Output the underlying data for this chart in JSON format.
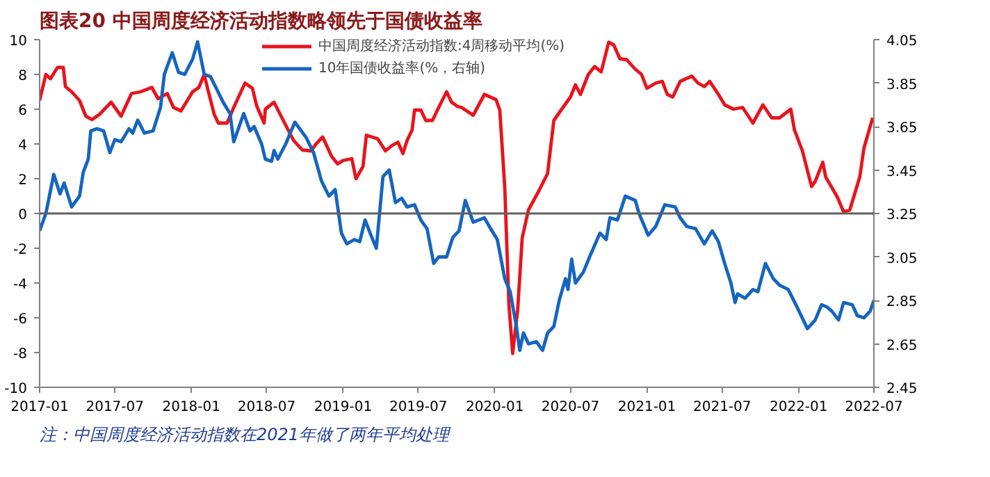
{
  "chart_data": {
    "type": "line",
    "title": "图表20 中国周度经济活动指数略领先于国债收益率",
    "annotations": [
      "注：中国周度经济活动指数在2021年做了两年平均处理"
    ],
    "xlim": [
      "2017-01-01",
      "2022-07-01"
    ],
    "xticks": [
      "2017-01",
      "2017-07",
      "2018-01",
      "2018-07",
      "2019-01",
      "2019-07",
      "2020-01",
      "2020-07",
      "2021-01",
      "2021-07",
      "2022-01",
      "2022-07"
    ],
    "ylim": [
      -10,
      10
    ],
    "yticks": [
      -10,
      -8,
      -6,
      -4,
      -2,
      0,
      2,
      4,
      6,
      8,
      10
    ],
    "y2lim": [
      2.45,
      4.05
    ],
    "y2ticks": [
      2.45,
      2.65,
      2.85,
      3.05,
      3.25,
      3.45,
      3.65,
      3.85,
      4.05
    ],
    "ref_lines": [
      {
        "axis": "y",
        "value": 0,
        "color": "#606060"
      }
    ],
    "legend": "top",
    "grid": false,
    "series": [
      {
        "name": "中国周度经济活动指数:4周移动平均(%)",
        "color": "#e8141c",
        "x": [
          "2017-01-01",
          "2017-01-16",
          "2017-01-27",
          "2017-02-13",
          "2017-02-27",
          "2017-03-04",
          "2017-03-19",
          "2017-04-07",
          "2017-04-22",
          "2017-05-07",
          "2017-05-25",
          "2017-06-22",
          "2017-07-16",
          "2017-08-10",
          "2017-09-01",
          "2017-09-28",
          "2017-10-13",
          "2017-11-04",
          "2017-11-19",
          "2017-12-07",
          "2018-01-04",
          "2018-01-19",
          "2018-02-01",
          "2018-02-10",
          "2018-02-25",
          "2018-03-07",
          "2018-03-28",
          "2018-04-13",
          "2018-05-10",
          "2018-05-28",
          "2018-06-07",
          "2018-06-25",
          "2018-06-28",
          "2018-07-19",
          "2018-08-07",
          "2018-09-04",
          "2018-09-25",
          "2018-10-16",
          "2018-10-28",
          "2018-11-13",
          "2018-12-04",
          "2018-12-19",
          "2019-01-01",
          "2019-01-22",
          "2019-02-01",
          "2019-02-18",
          "2019-02-26",
          "2019-03-25",
          "2019-04-13",
          "2019-04-28",
          "2019-05-13",
          "2019-05-25",
          "2019-06-04",
          "2019-06-16",
          "2019-06-22",
          "2019-07-07",
          "2019-07-19",
          "2019-08-04",
          "2019-08-19",
          "2019-09-07",
          "2019-09-19",
          "2019-10-04",
          "2019-10-13",
          "2019-11-10",
          "2019-12-07",
          "2020-01-04",
          "2020-01-13",
          "2020-01-25",
          "2020-02-04",
          "2020-02-13",
          "2020-02-25",
          "2020-03-07",
          "2020-03-22",
          "2020-04-16",
          "2020-05-07",
          "2020-05-22",
          "2020-06-13",
          "2020-07-01",
          "2020-07-13",
          "2020-07-25",
          "2020-08-13",
          "2020-08-28",
          "2020-09-13",
          "2020-10-01",
          "2020-10-13",
          "2020-10-28",
          "2020-11-13",
          "2020-12-04",
          "2020-12-19",
          "2021-01-01",
          "2021-01-22",
          "2021-02-07",
          "2021-02-19",
          "2021-03-04",
          "2021-03-22",
          "2021-04-19",
          "2021-05-04",
          "2021-05-19",
          "2021-06-01",
          "2021-06-22",
          "2021-07-07",
          "2021-07-28",
          "2021-08-19",
          "2021-09-13",
          "2021-10-07",
          "2021-10-28",
          "2021-11-16",
          "2021-12-13",
          "2021-12-22",
          "2022-01-10",
          "2022-02-01",
          "2022-02-10",
          "2022-02-28",
          "2022-03-07",
          "2022-04-04",
          "2022-04-19",
          "2022-05-04",
          "2022-05-28",
          "2022-06-07",
          "2022-06-28"
        ],
        "values": [
          6.5,
          8.0,
          7.75,
          8.4,
          8.4,
          7.3,
          7.0,
          6.5,
          5.6,
          5.4,
          5.7,
          6.4,
          5.6,
          6.9,
          7.0,
          7.25,
          6.6,
          6.9,
          6.1,
          5.9,
          7.0,
          7.25,
          8.0,
          7.1,
          5.7,
          5.2,
          5.2,
          6.1,
          7.5,
          7.2,
          6.2,
          5.2,
          6.0,
          6.4,
          5.5,
          4.2,
          3.65,
          3.6,
          4.0,
          4.4,
          3.3,
          2.85,
          3.05,
          3.15,
          2.0,
          2.7,
          4.5,
          4.3,
          3.6,
          3.9,
          4.1,
          3.45,
          4.2,
          4.8,
          5.95,
          5.95,
          5.35,
          5.35,
          6.1,
          7.0,
          6.4,
          6.15,
          6.1,
          5.65,
          6.85,
          6.55,
          5.95,
          1.5,
          -5.25,
          -8.05,
          -5.55,
          -1.4,
          0.2,
          1.3,
          2.3,
          5.35,
          6.1,
          6.7,
          7.4,
          6.85,
          8.0,
          8.45,
          8.15,
          9.85,
          9.7,
          8.9,
          8.85,
          8.3,
          8.0,
          7.2,
          7.5,
          7.6,
          6.85,
          6.7,
          7.6,
          7.9,
          7.5,
          7.3,
          7.6,
          6.85,
          6.25,
          6.0,
          6.1,
          5.2,
          6.25,
          5.5,
          5.5,
          6.0,
          4.8,
          3.6,
          1.55,
          1.85,
          2.95,
          2.1,
          0.95,
          0.1,
          0.2,
          2.1,
          3.75,
          5.5
        ]
      },
      {
        "name": "10年国债收益率(%，右轴)",
        "color": "#1565c0",
        "axis": "y2",
        "x": [
          "2017-01-01",
          "2017-01-16",
          "2017-02-04",
          "2017-02-19",
          "2017-03-01",
          "2017-03-19",
          "2017-04-07",
          "2017-04-16",
          "2017-04-28",
          "2017-05-04",
          "2017-05-19",
          "2017-06-04",
          "2017-06-19",
          "2017-07-01",
          "2017-07-16",
          "2017-08-04",
          "2017-08-13",
          "2017-08-25",
          "2017-09-10",
          "2017-10-01",
          "2017-10-19",
          "2017-10-28",
          "2017-11-16",
          "2017-12-01",
          "2017-12-16",
          "2018-01-04",
          "2018-01-16",
          "2018-02-01",
          "2018-02-16",
          "2018-03-01",
          "2018-03-19",
          "2018-04-04",
          "2018-04-13",
          "2018-05-07",
          "2018-05-22",
          "2018-06-01",
          "2018-06-19",
          "2018-06-28",
          "2018-07-13",
          "2018-07-19",
          "2018-07-28",
          "2018-08-16",
          "2018-09-07",
          "2018-10-04",
          "2018-10-22",
          "2018-11-10",
          "2018-11-28",
          "2018-12-13",
          "2018-12-28",
          "2019-01-10",
          "2019-01-28",
          "2019-02-10",
          "2019-02-23",
          "2019-03-07",
          "2019-03-22",
          "2019-04-07",
          "2019-04-22",
          "2019-05-07",
          "2019-05-22",
          "2019-06-04",
          "2019-06-22",
          "2019-07-07",
          "2019-07-22",
          "2019-08-07",
          "2019-08-19",
          "2019-09-07",
          "2019-09-22",
          "2019-10-07",
          "2019-10-22",
          "2019-11-10",
          "2019-12-07",
          "2019-12-22",
          "2020-01-07",
          "2020-01-25",
          "2020-02-07",
          "2020-02-22",
          "2020-03-01",
          "2020-03-10",
          "2020-03-22",
          "2020-04-10",
          "2020-04-25",
          "2020-05-07",
          "2020-05-22",
          "2020-06-04",
          "2020-06-19",
          "2020-06-25",
          "2020-07-04",
          "2020-07-13",
          "2020-08-01",
          "2020-08-16",
          "2020-09-10",
          "2020-09-25",
          "2020-10-04",
          "2020-10-22",
          "2020-11-10",
          "2020-12-04",
          "2020-12-13",
          "2021-01-04",
          "2021-01-22",
          "2021-02-13",
          "2021-03-10",
          "2021-03-22",
          "2021-04-07",
          "2021-04-28",
          "2021-05-19",
          "2021-06-07",
          "2021-06-22",
          "2021-07-07",
          "2021-07-22",
          "2021-08-01",
          "2021-08-07",
          "2021-08-25",
          "2021-09-13",
          "2021-09-25",
          "2021-10-13",
          "2021-11-01",
          "2021-11-16",
          "2021-12-07",
          "2021-12-28",
          "2022-01-22",
          "2022-02-10",
          "2022-02-25",
          "2022-03-10",
          "2022-03-22",
          "2022-04-07",
          "2022-04-19",
          "2022-05-10",
          "2022-05-22",
          "2022-06-07",
          "2022-06-22",
          "2022-07-01"
        ],
        "values": [
          3.17,
          3.25,
          3.43,
          3.34,
          3.39,
          3.28,
          3.33,
          3.44,
          3.5,
          3.63,
          3.64,
          3.63,
          3.53,
          3.59,
          3.58,
          3.64,
          3.62,
          3.68,
          3.62,
          3.63,
          3.74,
          3.89,
          3.99,
          3.9,
          3.89,
          3.96,
          4.04,
          3.89,
          3.88,
          3.83,
          3.76,
          3.71,
          3.58,
          3.71,
          3.63,
          3.65,
          3.57,
          3.5,
          3.49,
          3.54,
          3.5,
          3.57,
          3.67,
          3.6,
          3.53,
          3.4,
          3.33,
          3.36,
          3.16,
          3.11,
          3.13,
          3.12,
          3.22,
          3.16,
          3.09,
          3.42,
          3.45,
          3.3,
          3.32,
          3.28,
          3.29,
          3.22,
          3.18,
          3.02,
          3.05,
          3.05,
          3.14,
          3.17,
          3.31,
          3.21,
          3.23,
          3.18,
          3.13,
          2.95,
          2.89,
          2.73,
          2.62,
          2.7,
          2.65,
          2.66,
          2.62,
          2.7,
          2.73,
          2.85,
          2.95,
          2.9,
          3.04,
          2.93,
          2.98,
          3.05,
          3.16,
          3.13,
          3.23,
          3.22,
          3.33,
          3.31,
          3.25,
          3.15,
          3.19,
          3.29,
          3.28,
          3.23,
          3.19,
          3.18,
          3.11,
          3.17,
          3.12,
          3.02,
          2.93,
          2.84,
          2.88,
          2.86,
          2.9,
          2.89,
          3.02,
          2.95,
          2.92,
          2.9,
          2.82,
          2.72,
          2.76,
          2.83,
          2.82,
          2.8,
          2.76,
          2.84,
          2.83,
          2.78,
          2.77,
          2.8,
          2.85
        ]
      }
    ]
  }
}
